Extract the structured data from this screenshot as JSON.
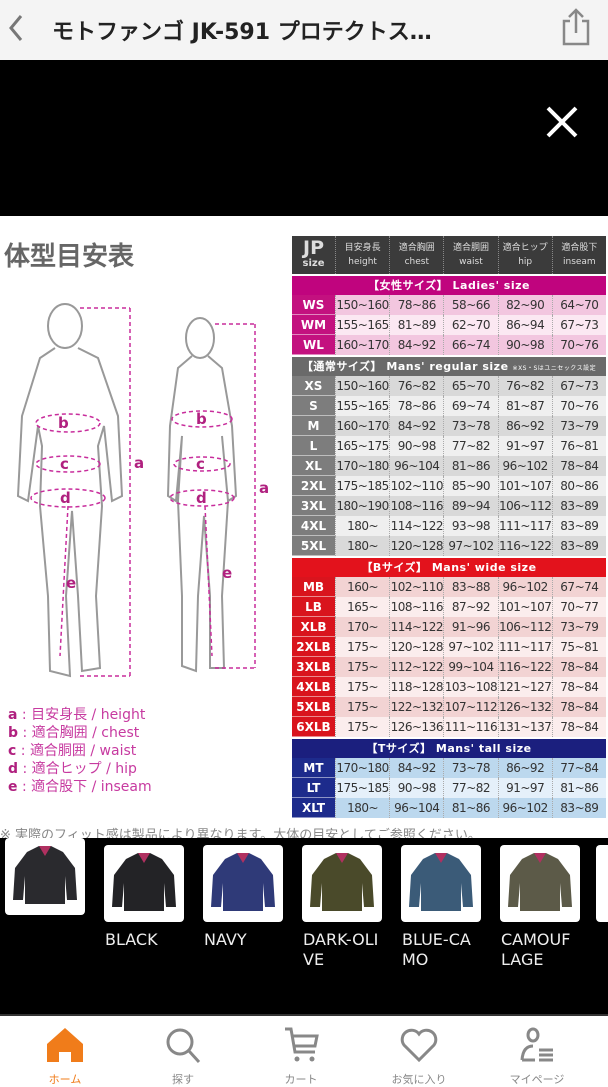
{
  "header": {
    "title": "モトファンゴ JK-591 プロテクトス…",
    "back_icon": "chevron-left-icon",
    "share_icon": "share-icon"
  },
  "viewer": {
    "close_icon": "close-icon"
  },
  "size_chart": {
    "title": "体型目安表",
    "columns": [
      {
        "jp": "目安身長",
        "en": "height"
      },
      {
        "jp": "適合胸囲",
        "en": "chest"
      },
      {
        "jp": "適合胴囲",
        "en": "waist"
      },
      {
        "jp": "適合ヒップ",
        "en": "hip"
      },
      {
        "jp": "適合股下",
        "en": "inseam"
      }
    ],
    "corner": {
      "jp": "JP",
      "size": "size"
    },
    "groups": [
      {
        "label": "【女性サイズ】 Ladies' size",
        "band": "#c0047e",
        "cell": "#c3117f",
        "row_a": "#f2c6df",
        "row_b": "#fbe8f2",
        "rows": [
          {
            "size": "WS",
            "v": [
              "150~160",
              "78~86",
              "58~66",
              "82~90",
              "64~70"
            ]
          },
          {
            "size": "WM",
            "v": [
              "155~165",
              "81~89",
              "62~70",
              "86~94",
              "67~73"
            ]
          },
          {
            "size": "WL",
            "v": [
              "160~170",
              "84~92",
              "66~74",
              "90~98",
              "70~76"
            ]
          }
        ]
      },
      {
        "label": "【通常サイズ】 Mans' regular size",
        "sub": "※XS・Sはユニセックス設定",
        "band": "#6a6a6a",
        "cell": "#7d7d7d",
        "row_a": "#d9d9d9",
        "row_b": "#efefef",
        "rows": [
          {
            "size": "XS",
            "v": [
              "150~160",
              "76~82",
              "65~70",
              "76~82",
              "67~73"
            ]
          },
          {
            "size": "S",
            "v": [
              "155~165",
              "78~86",
              "69~74",
              "81~87",
              "70~76"
            ]
          },
          {
            "size": "M",
            "v": [
              "160~170",
              "84~92",
              "73~78",
              "86~92",
              "73~79"
            ]
          },
          {
            "size": "L",
            "v": [
              "165~175",
              "90~98",
              "77~82",
              "91~97",
              "76~81"
            ]
          },
          {
            "size": "XL",
            "v": [
              "170~180",
              "96~104",
              "81~86",
              "96~102",
              "78~84"
            ]
          },
          {
            "size": "2XL",
            "v": [
              "175~185",
              "102~110",
              "85~90",
              "101~107",
              "80~86"
            ]
          },
          {
            "size": "3XL",
            "v": [
              "180~190",
              "108~116",
              "89~94",
              "106~112",
              "83~89"
            ]
          },
          {
            "size": "4XL",
            "v": [
              "180~",
              "114~122",
              "93~98",
              "111~117",
              "83~89"
            ]
          },
          {
            "size": "5XL",
            "v": [
              "180~",
              "120~128",
              "97~102",
              "116~122",
              "83~89"
            ]
          }
        ]
      },
      {
        "label": "【Bサイズ】 Mans' wide size",
        "band": "#e3121c",
        "cell": "#d9141d",
        "row_a": "#f2d3d3",
        "row_b": "#fbeded",
        "rows": [
          {
            "size": "MB",
            "v": [
              "160~",
              "102~110",
              "83~88",
              "96~102",
              "67~74"
            ]
          },
          {
            "size": "LB",
            "v": [
              "165~",
              "108~116",
              "87~92",
              "101~107",
              "70~77"
            ]
          },
          {
            "size": "XLB",
            "v": [
              "170~",
              "114~122",
              "91~96",
              "106~112",
              "73~79"
            ]
          },
          {
            "size": "2XLB",
            "v": [
              "175~",
              "120~128",
              "97~102",
              "111~117",
              "75~81"
            ]
          },
          {
            "size": "3XLB",
            "v": [
              "175~",
              "112~122",
              "99~104",
              "116~122",
              "78~84"
            ]
          },
          {
            "size": "4XLB",
            "v": [
              "175~",
              "118~128",
              "103~108",
              "121~127",
              "78~84"
            ]
          },
          {
            "size": "5XLB",
            "v": [
              "175~",
              "122~132",
              "107~112",
              "126~132",
              "78~84"
            ]
          },
          {
            "size": "6XLB",
            "v": [
              "175~",
              "126~136",
              "111~116",
              "131~137",
              "78~84"
            ]
          }
        ]
      },
      {
        "label": "【Tサイズ】 Mans' tall size",
        "band": "#1b1f7e",
        "cell": "#1d2b8c",
        "row_a": "#bcd8ee",
        "row_b": "#e5f0fa",
        "rows": [
          {
            "size": "MT",
            "v": [
              "170~180",
              "84~92",
              "73~78",
              "86~92",
              "77~84"
            ]
          },
          {
            "size": "LT",
            "v": [
              "175~185",
              "90~98",
              "77~82",
              "91~97",
              "81~86"
            ]
          },
          {
            "size": "XLT",
            "v": [
              "180~",
              "96~104",
              "81~86",
              "96~102",
              "83~89"
            ]
          }
        ]
      }
    ],
    "legend": [
      {
        "key": "a",
        "text": "目安身長 / height"
      },
      {
        "key": "b",
        "text": "適合胸囲 / chest"
      },
      {
        "key": "c",
        "text": "適合胴囲 / waist"
      },
      {
        "key": "d",
        "text": "適合ヒップ / hip"
      },
      {
        "key": "e",
        "text": "適合股下 / inseam"
      }
    ],
    "figure_labels": [
      "a",
      "b",
      "c",
      "d",
      "e"
    ],
    "note": "※ 実際のフィット感は製品により異なります。大体の目安としてご参照ください。"
  },
  "colors": [
    {
      "label": "",
      "jacket": "#2a2a2e"
    },
    {
      "label": "BLACK",
      "jacket": "#232326"
    },
    {
      "label": "NAVY",
      "jacket": "#2f3a78"
    },
    {
      "label": "DARK-OLIVE",
      "label_lines": [
        "DARK-OLI",
        "VE"
      ],
      "jacket": "#4a4a2a"
    },
    {
      "label": "BLUE-CAMO",
      "label_lines": [
        "BLUE-CA",
        "MO"
      ],
      "jacket": "#3b5b78"
    },
    {
      "label": "CAMOUFLAGE",
      "label_lines": [
        "CAMOUF",
        "LAGE"
      ],
      "jacket": "#5c5a48"
    }
  ],
  "bottom_nav": [
    {
      "label": "ホーム",
      "icon": "home-icon",
      "active": true
    },
    {
      "label": "探す",
      "icon": "search-icon"
    },
    {
      "label": "カート",
      "icon": "cart-icon"
    },
    {
      "label": "お気に入り",
      "icon": "heart-icon"
    },
    {
      "label": "マイページ",
      "icon": "user-icon"
    }
  ],
  "accent": "#f07c1a"
}
